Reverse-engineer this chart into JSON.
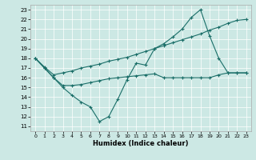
{
  "xlabel": "Humidex (Indice chaleur)",
  "bg_color": "#cce8e4",
  "line_color": "#1a6e68",
  "xlim": [
    -0.5,
    23.5
  ],
  "ylim": [
    10.5,
    23.5
  ],
  "yticks": [
    11,
    12,
    13,
    14,
    15,
    16,
    17,
    18,
    19,
    20,
    21,
    22,
    23
  ],
  "xticks": [
    0,
    1,
    2,
    3,
    4,
    5,
    6,
    7,
    8,
    9,
    10,
    11,
    12,
    13,
    14,
    15,
    16,
    17,
    18,
    19,
    20,
    21,
    22,
    23
  ],
  "lines": [
    {
      "x": [
        0,
        1,
        2,
        3,
        4,
        5,
        6,
        7,
        8,
        9,
        10,
        11,
        12,
        13,
        14,
        15,
        16,
        17,
        18,
        19,
        20,
        21,
        22,
        23
      ],
      "y": [
        18,
        17,
        16,
        15,
        14.2,
        13.5,
        13.0,
        11.5,
        12.0,
        13.8,
        15.8,
        17.5,
        17.3,
        19.0,
        19.5,
        20.2,
        21.0,
        22.2,
        23.0,
        20.3,
        18.0,
        16.5,
        16.5,
        16.5
      ]
    },
    {
      "x": [
        0,
        1,
        2,
        3,
        4,
        5,
        6,
        7,
        8,
        9,
        10,
        11,
        12,
        13,
        14,
        15,
        16,
        17,
        18,
        19,
        20,
        21,
        22,
        23
      ],
      "y": [
        18.0,
        17.1,
        16.3,
        16.5,
        16.7,
        17.0,
        17.2,
        17.4,
        17.7,
        17.9,
        18.1,
        18.4,
        18.7,
        19.0,
        19.3,
        19.6,
        19.9,
        20.2,
        20.5,
        20.9,
        21.2,
        21.6,
        21.9,
        22.0
      ]
    },
    {
      "x": [
        0,
        1,
        2,
        3,
        4,
        5,
        6,
        7,
        8,
        9,
        10,
        11,
        12,
        13,
        14,
        15,
        16,
        17,
        18,
        19,
        20,
        21,
        22,
        23
      ],
      "y": [
        18.0,
        17.0,
        16.0,
        15.2,
        15.2,
        15.3,
        15.5,
        15.7,
        15.9,
        16.0,
        16.1,
        16.2,
        16.3,
        16.4,
        16.0,
        16.0,
        16.0,
        16.0,
        16.0,
        16.0,
        16.3,
        16.5,
        16.5,
        16.5
      ]
    }
  ]
}
